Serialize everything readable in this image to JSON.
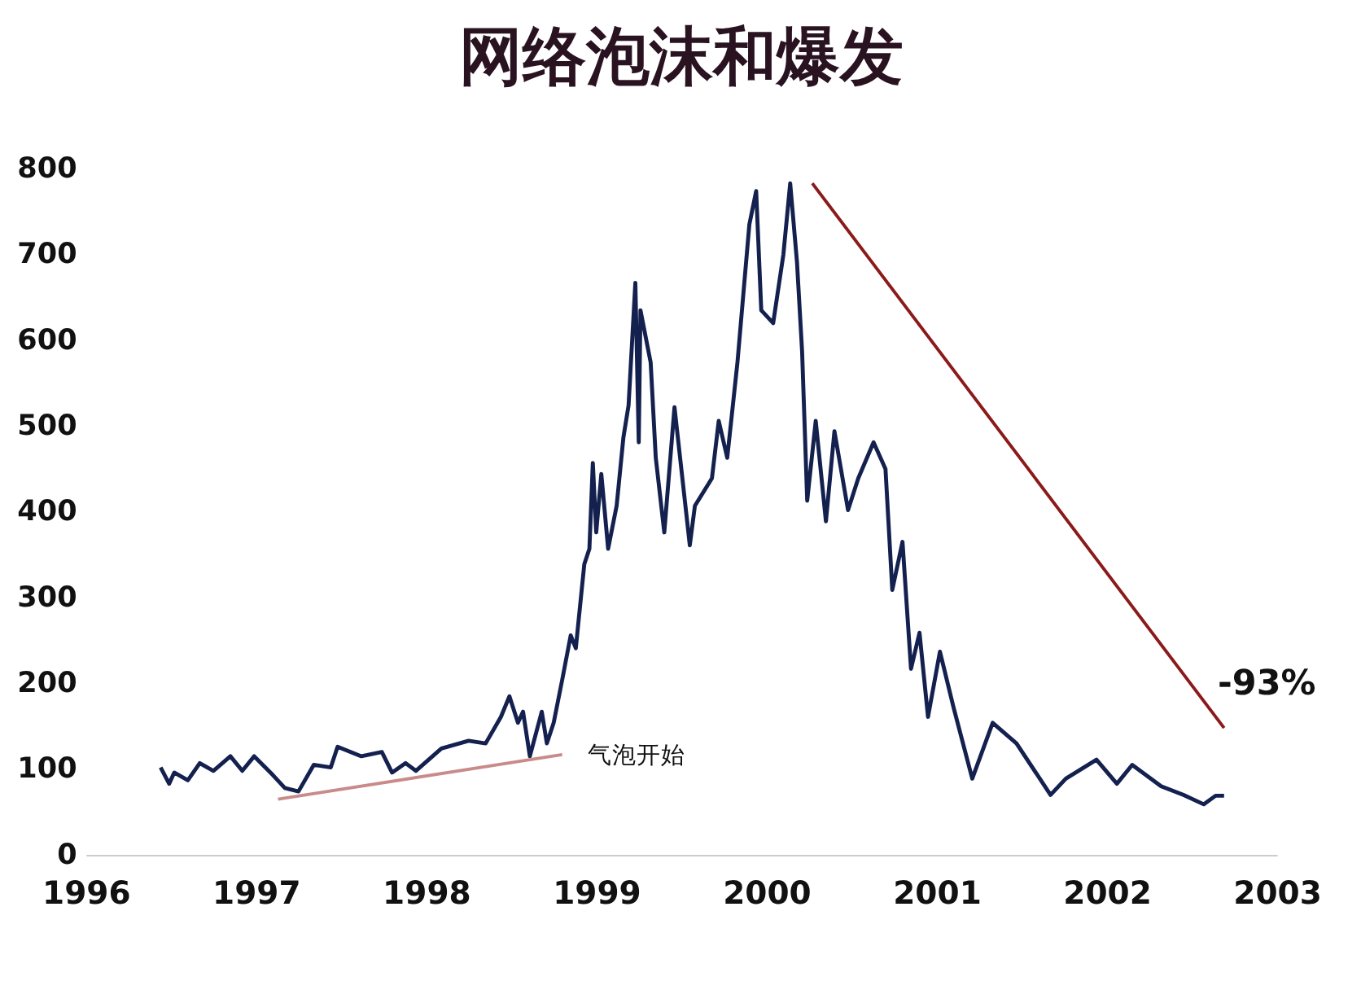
{
  "chart_data": {
    "type": "line",
    "title": "网络泡沫和爆发",
    "xlim": [
      1996,
      2003
    ],
    "xticks": [
      1996,
      1997,
      1998,
      1999,
      2000,
      2001,
      2002,
      2003
    ],
    "ylim": [
      0,
      800
    ],
    "yticks": [
      0,
      100,
      200,
      300,
      400,
      500,
      600,
      700,
      800
    ],
    "grid": false,
    "marker": "none",
    "line_style": "solid",
    "series": [
      {
        "color": "#14214f",
        "x": [
          1996.44,
          1996.49,
          1996.52,
          1996.6,
          1996.67,
          1996.75,
          1996.85,
          1996.92,
          1996.99,
          1997.1,
          1997.17,
          1997.25,
          1997.34,
          1997.44,
          1997.48,
          1997.62,
          1997.74,
          1997.8,
          1997.88,
          1997.94,
          1998.09,
          1998.25,
          1998.35,
          1998.44,
          1998.49,
          1998.54,
          1998.57,
          1998.61,
          1998.68,
          1998.71,
          1998.75,
          1998.8,
          1998.85,
          1998.88,
          1998.93,
          1998.96,
          1998.98,
          1999.0,
          1999.03,
          1999.07,
          1999.12,
          1999.16,
          1999.19,
          1999.23,
          1999.25,
          1999.26,
          1999.32,
          1999.35,
          1999.4,
          1999.46,
          1999.55,
          1999.58,
          1999.68,
          1999.72,
          1999.77,
          1999.83,
          1999.9,
          1999.94,
          1999.97,
          2000.04,
          2000.1,
          2000.14,
          2000.18,
          2000.21,
          2000.24,
          2000.29,
          2000.35,
          2000.4,
          2000.48,
          2000.54,
          2000.63,
          2000.7,
          2000.74,
          2000.8,
          2000.85,
          2000.9,
          2000.95,
          2001.02,
          2001.1,
          2001.21,
          2001.33,
          2001.47,
          2001.67,
          2001.76,
          2001.94,
          2002.06,
          2002.15,
          2002.32,
          2002.45,
          2002.57,
          2002.64,
          2002.69
        ],
        "values": [
          102,
          83,
          96,
          87,
          107,
          98,
          115,
          98,
          115,
          93,
          78,
          74,
          105,
          102,
          126,
          115,
          120,
          96,
          107,
          98,
          124,
          133,
          130,
          161,
          185,
          154,
          167,
          115,
          167,
          130,
          154,
          204,
          256,
          241,
          339,
          357,
          457,
          376,
          444,
          357,
          407,
          487,
          524,
          667,
          481,
          635,
          574,
          463,
          376,
          522,
          361,
          407,
          439,
          506,
          463,
          574,
          735,
          774,
          635,
          620,
          700,
          783,
          691,
          587,
          413,
          506,
          389,
          494,
          402,
          439,
          481,
          450,
          309,
          365,
          217,
          259,
          161,
          237,
          172,
          89,
          154,
          130,
          70,
          89,
          111,
          83,
          105,
          80,
          70,
          59,
          69,
          69
        ]
      },
      {
        "color": "#c98a8a",
        "x": [
          1997.13,
          1998.8
        ],
        "values": [
          65,
          117
        ]
      },
      {
        "color": "#8b1a1a",
        "x": [
          2000.27,
          2002.69
        ],
        "values": [
          783,
          148
        ]
      }
    ],
    "annotations": [
      "气泡开始",
      "-93%"
    ]
  }
}
